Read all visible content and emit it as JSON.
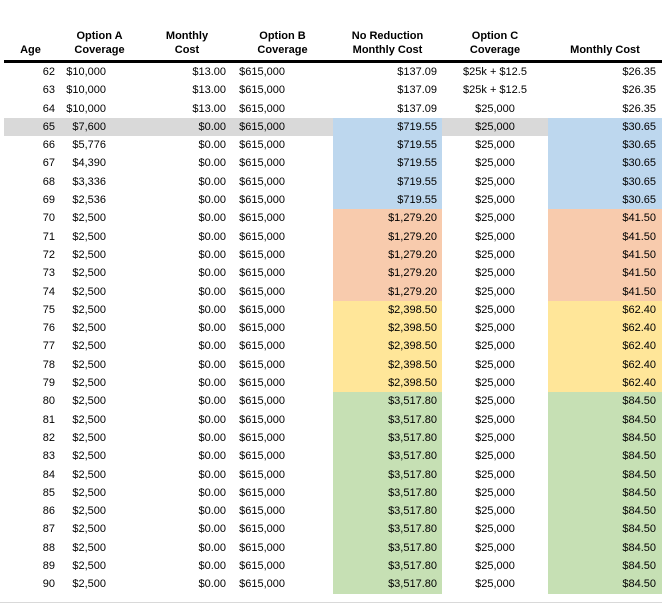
{
  "table": {
    "headers": [
      "Age",
      "Option A\nCoverage",
      "Monthly\nCost",
      "Option B\nCoverage",
      "No Reduction\nMonthly Cost",
      "Option C\nCoverage",
      "Monthly Cost"
    ],
    "rows": [
      {
        "age": "62",
        "a": "$10,000",
        "am": "$13.00",
        "b": "$615,000",
        "nr": "$137.09",
        "c": "$25k + $12.5",
        "cm": "$26.35",
        "band": "none",
        "gray": false
      },
      {
        "age": "63",
        "a": "$10,000",
        "am": "$13.00",
        "b": "$615,000",
        "nr": "$137.09",
        "c": "$25k + $12.5",
        "cm": "$26.35",
        "band": "none",
        "gray": false
      },
      {
        "age": "64",
        "a": "$10,000",
        "am": "$13.00",
        "b": "$615,000",
        "nr": "$137.09",
        "c": "$25,000",
        "cm": "$26.35",
        "band": "none",
        "gray": false
      },
      {
        "age": "65",
        "a": "$7,600",
        "am": "$0.00",
        "b": "$615,000",
        "nr": "$719.55",
        "c": "$25,000",
        "cm": "$30.65",
        "band": "blue",
        "gray": true
      },
      {
        "age": "66",
        "a": "$5,776",
        "am": "$0.00",
        "b": "$615,000",
        "nr": "$719.55",
        "c": "$25,000",
        "cm": "$30.65",
        "band": "blue",
        "gray": false
      },
      {
        "age": "67",
        "a": "$4,390",
        "am": "$0.00",
        "b": "$615,000",
        "nr": "$719.55",
        "c": "$25,000",
        "cm": "$30.65",
        "band": "blue",
        "gray": false
      },
      {
        "age": "68",
        "a": "$3,336",
        "am": "$0.00",
        "b": "$615,000",
        "nr": "$719.55",
        "c": "$25,000",
        "cm": "$30.65",
        "band": "blue",
        "gray": false
      },
      {
        "age": "69",
        "a": "$2,536",
        "am": "$0.00",
        "b": "$615,000",
        "nr": "$719.55",
        "c": "$25,000",
        "cm": "$30.65",
        "band": "blue",
        "gray": false
      },
      {
        "age": "70",
        "a": "$2,500",
        "am": "$0.00",
        "b": "$615,000",
        "nr": "$1,279.20",
        "c": "$25,000",
        "cm": "$41.50",
        "band": "orange",
        "gray": false
      },
      {
        "age": "71",
        "a": "$2,500",
        "am": "$0.00",
        "b": "$615,000",
        "nr": "$1,279.20",
        "c": "$25,000",
        "cm": "$41.50",
        "band": "orange",
        "gray": false
      },
      {
        "age": "72",
        "a": "$2,500",
        "am": "$0.00",
        "b": "$615,000",
        "nr": "$1,279.20",
        "c": "$25,000",
        "cm": "$41.50",
        "band": "orange",
        "gray": false
      },
      {
        "age": "73",
        "a": "$2,500",
        "am": "$0.00",
        "b": "$615,000",
        "nr": "$1,279.20",
        "c": "$25,000",
        "cm": "$41.50",
        "band": "orange",
        "gray": false
      },
      {
        "age": "74",
        "a": "$2,500",
        "am": "$0.00",
        "b": "$615,000",
        "nr": "$1,279.20",
        "c": "$25,000",
        "cm": "$41.50",
        "band": "orange",
        "gray": false
      },
      {
        "age": "75",
        "a": "$2,500",
        "am": "$0.00",
        "b": "$615,000",
        "nr": "$2,398.50",
        "c": "$25,000",
        "cm": "$62.40",
        "band": "yellow",
        "gray": false
      },
      {
        "age": "76",
        "a": "$2,500",
        "am": "$0.00",
        "b": "$615,000",
        "nr": "$2,398.50",
        "c": "$25,000",
        "cm": "$62.40",
        "band": "yellow",
        "gray": false
      },
      {
        "age": "77",
        "a": "$2,500",
        "am": "$0.00",
        "b": "$615,000",
        "nr": "$2,398.50",
        "c": "$25,000",
        "cm": "$62.40",
        "band": "yellow",
        "gray": false
      },
      {
        "age": "78",
        "a": "$2,500",
        "am": "$0.00",
        "b": "$615,000",
        "nr": "$2,398.50",
        "c": "$25,000",
        "cm": "$62.40",
        "band": "yellow",
        "gray": false
      },
      {
        "age": "79",
        "a": "$2,500",
        "am": "$0.00",
        "b": "$615,000",
        "nr": "$2,398.50",
        "c": "$25,000",
        "cm": "$62.40",
        "band": "yellow",
        "gray": false
      },
      {
        "age": "80",
        "a": "$2,500",
        "am": "$0.00",
        "b": "$615,000",
        "nr": "$3,517.80",
        "c": "$25,000",
        "cm": "$84.50",
        "band": "green",
        "gray": false
      },
      {
        "age": "81",
        "a": "$2,500",
        "am": "$0.00",
        "b": "$615,000",
        "nr": "$3,517.80",
        "c": "$25,000",
        "cm": "$84.50",
        "band": "green",
        "gray": false
      },
      {
        "age": "82",
        "a": "$2,500",
        "am": "$0.00",
        "b": "$615,000",
        "nr": "$3,517.80",
        "c": "$25,000",
        "cm": "$84.50",
        "band": "green",
        "gray": false
      },
      {
        "age": "83",
        "a": "$2,500",
        "am": "$0.00",
        "b": "$615,000",
        "nr": "$3,517.80",
        "c": "$25,000",
        "cm": "$84.50",
        "band": "green",
        "gray": false
      },
      {
        "age": "84",
        "a": "$2,500",
        "am": "$0.00",
        "b": "$615,000",
        "nr": "$3,517.80",
        "c": "$25,000",
        "cm": "$84.50",
        "band": "green",
        "gray": false
      },
      {
        "age": "85",
        "a": "$2,500",
        "am": "$0.00",
        "b": "$615,000",
        "nr": "$3,517.80",
        "c": "$25,000",
        "cm": "$84.50",
        "band": "green",
        "gray": false
      },
      {
        "age": "86",
        "a": "$2,500",
        "am": "$0.00",
        "b": "$615,000",
        "nr": "$3,517.80",
        "c": "$25,000",
        "cm": "$84.50",
        "band": "green",
        "gray": false
      },
      {
        "age": "87",
        "a": "$2,500",
        "am": "$0.00",
        "b": "$615,000",
        "nr": "$3,517.80",
        "c": "$25,000",
        "cm": "$84.50",
        "band": "green",
        "gray": false
      },
      {
        "age": "88",
        "a": "$2,500",
        "am": "$0.00",
        "b": "$615,000",
        "nr": "$3,517.80",
        "c": "$25,000",
        "cm": "$84.50",
        "band": "green",
        "gray": false
      },
      {
        "age": "89",
        "a": "$2,500",
        "am": "$0.00",
        "b": "$615,000",
        "nr": "$3,517.80",
        "c": "$25,000",
        "cm": "$84.50",
        "band": "green",
        "gray": false
      },
      {
        "age": "90",
        "a": "$2,500",
        "am": "$0.00",
        "b": "$615,000",
        "nr": "$3,517.80",
        "c": "$25,000",
        "cm": "$84.50",
        "band": "green",
        "gray": false
      }
    ]
  },
  "colors": {
    "blue": "#BDD7EE",
    "orange": "#F8CBAD",
    "yellow": "#FFE699",
    "green": "#C6E0B4",
    "gray": "#D9D9D9",
    "header_rule": "#000000"
  }
}
